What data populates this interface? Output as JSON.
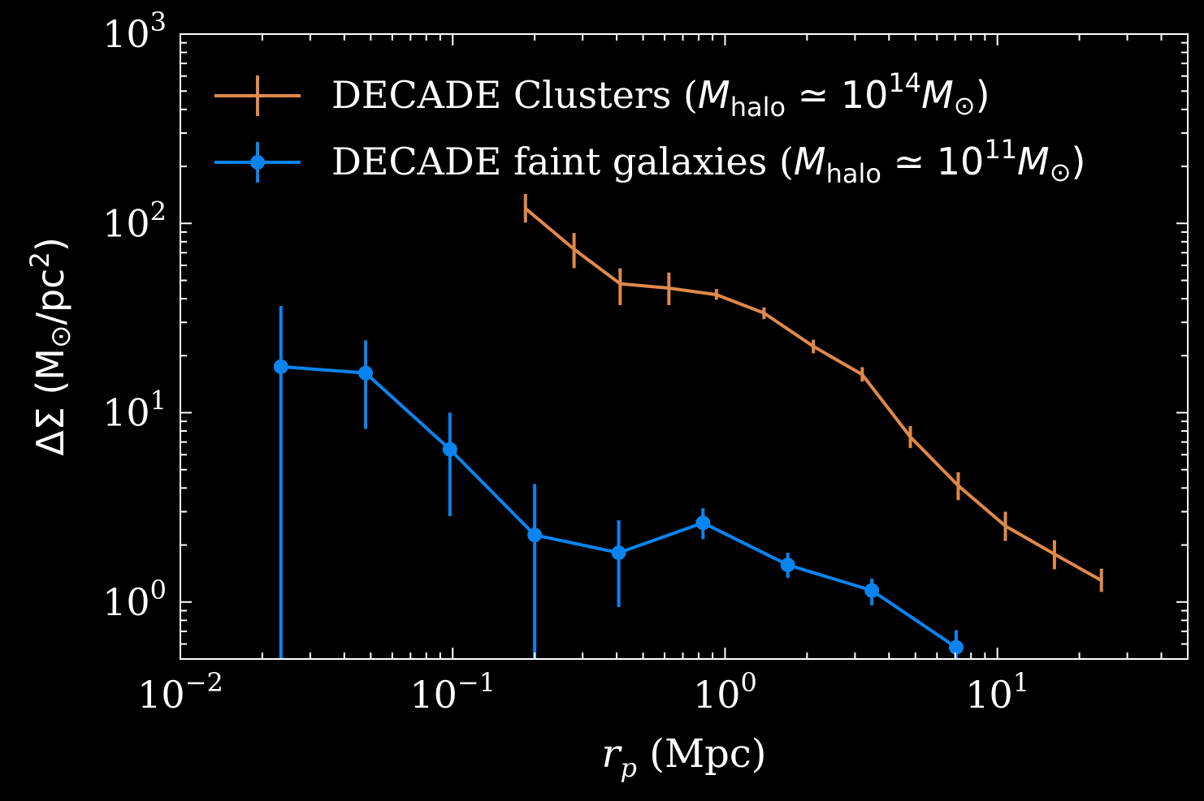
{
  "chart_data": {
    "type": "line",
    "title": "",
    "xlabel": "r_p (Mpc)",
    "xlabel_parts": {
      "var": "r",
      "sub": "p",
      "unit": " (Mpc)"
    },
    "ylabel": "ΔΣ (M☉/pc²)",
    "ylabel_parts": {
      "pre": "ΔΣ (M",
      "sym": "⊙",
      "mid": "/pc",
      "sup": "2",
      "post": ")"
    },
    "xscale": "log",
    "yscale": "log",
    "xlim": [
      0.01,
      50
    ],
    "ylim": [
      0.5,
      1000
    ],
    "xticks": [
      {
        "base": "10",
        "exp": "−2",
        "value": 0.01
      },
      {
        "base": "10",
        "exp": "−1",
        "value": 0.1
      },
      {
        "base": "10",
        "exp": "0",
        "value": 1
      },
      {
        "base": "10",
        "exp": "1",
        "value": 10
      }
    ],
    "yticks": [
      {
        "base": "10",
        "exp": "0",
        "value": 1
      },
      {
        "base": "10",
        "exp": "1",
        "value": 10
      },
      {
        "base": "10",
        "exp": "2",
        "value": 100
      },
      {
        "base": "10",
        "exp": "3",
        "value": 1000
      }
    ],
    "grid": false,
    "legend_placement": "top-left",
    "series": [
      {
        "name": "DECADE Clusters (M_halo ≃ 10^14 M☉)",
        "legend": {
          "pre": "DECADE Clusters (",
          "M": "M",
          "sub": "halo",
          "approx": " ≃ 10",
          "exp": "14",
          "M2": "M",
          "sun": "⊙",
          "post": ")"
        },
        "color": "#E0894B",
        "marker": "none",
        "x": [
          0.185,
          0.279,
          0.412,
          0.622,
          0.93,
          1.39,
          2.11,
          3.19,
          4.79,
          7.18,
          10.7,
          16.2,
          24.1
        ],
        "y": [
          120,
          73,
          48,
          45.5,
          42,
          33.6,
          22.4,
          15.9,
          7.45,
          4.12,
          2.52,
          1.79,
          1.3
        ],
        "y_err_low": [
          101,
          58,
          37,
          37,
          39.5,
          31.2,
          20.6,
          14.6,
          6.5,
          3.45,
          2.1,
          1.49,
          1.13
        ],
        "y_err_high": [
          143,
          89,
          58,
          55,
          45,
          36,
          24.3,
          17.4,
          8.5,
          4.85,
          3.0,
          2.12,
          1.5
        ]
      },
      {
        "name": "DECADE faint galaxies (M_halo ≃ 10^11 M☉)",
        "legend": {
          "pre": "DECADE faint galaxies (",
          "M": "M",
          "sub": "halo",
          "approx": " ≃ 10",
          "exp": "11",
          "M2": "M",
          "sun": "⊙",
          "post": ")"
        },
        "color": "#0A84F0",
        "marker": "circle",
        "x": [
          0.0234,
          0.0479,
          0.0977,
          0.2,
          0.407,
          0.83,
          1.7,
          3.46,
          7.06
        ],
        "y": [
          17.5,
          16.2,
          6.4,
          2.26,
          1.82,
          2.62,
          1.57,
          1.15,
          0.576
        ],
        "y_err_low": [
          0.01,
          8.2,
          2.84,
          0.01,
          0.94,
          2.15,
          1.34,
          0.96,
          0.45
        ],
        "y_err_high": [
          36.6,
          24.1,
          10,
          4.2,
          2.7,
          3.13,
          1.82,
          1.33,
          0.71
        ]
      }
    ]
  }
}
